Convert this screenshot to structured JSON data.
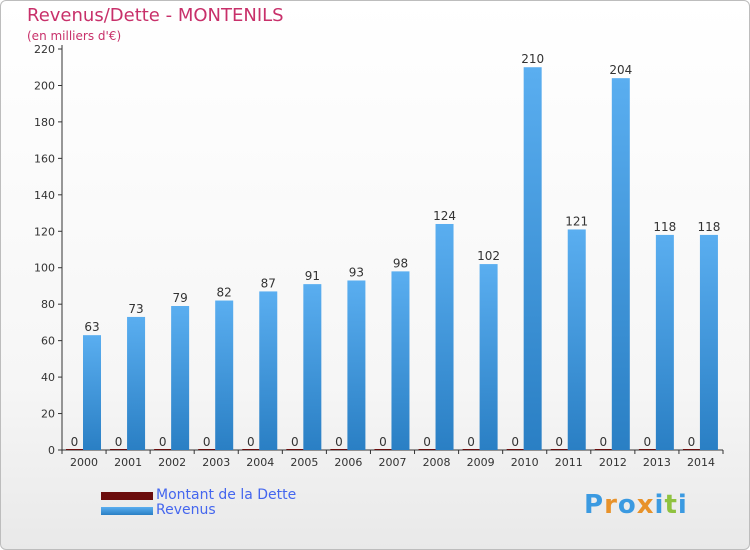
{
  "header": {
    "title": "Revenus/Dette - MONTENILS",
    "subtitle": "(en milliers d'€)"
  },
  "chart_data": {
    "type": "bar",
    "title": "Revenus/Dette - MONTENILS",
    "ylabel": "(en milliers d'€)",
    "ylim": [
      0,
      220
    ],
    "yticks": [
      0,
      20,
      40,
      60,
      80,
      100,
      120,
      140,
      160,
      180,
      200,
      220
    ],
    "grid": false,
    "legend_position": "bottom-left",
    "categories": [
      "2000",
      "2001",
      "2002",
      "2003",
      "2004",
      "2005",
      "2006",
      "2007",
      "2008",
      "2009",
      "2010",
      "2011",
      "2012",
      "2013",
      "2014"
    ],
    "series": [
      {
        "name": "Montant de la Dette",
        "color": "#6b0d0d",
        "values": [
          0,
          0,
          0,
          0,
          0,
          0,
          0,
          0,
          0,
          0,
          0,
          0,
          0,
          0,
          0
        ]
      },
      {
        "name": "Revenus",
        "color": "#3b9ae1",
        "values": [
          63,
          73,
          79,
          82,
          87,
          91,
          93,
          98,
          124,
          102,
          210,
          121,
          204,
          118,
          118
        ]
      }
    ]
  },
  "logo": {
    "letters": [
      "P",
      "r",
      "o",
      "x",
      "i",
      "t",
      "i"
    ],
    "colors": [
      "#3b9ae1",
      "#e8922a",
      "#3b9ae1",
      "#e8922a",
      "#3b9ae1",
      "#8fc23f",
      "#3b9ae1"
    ]
  }
}
